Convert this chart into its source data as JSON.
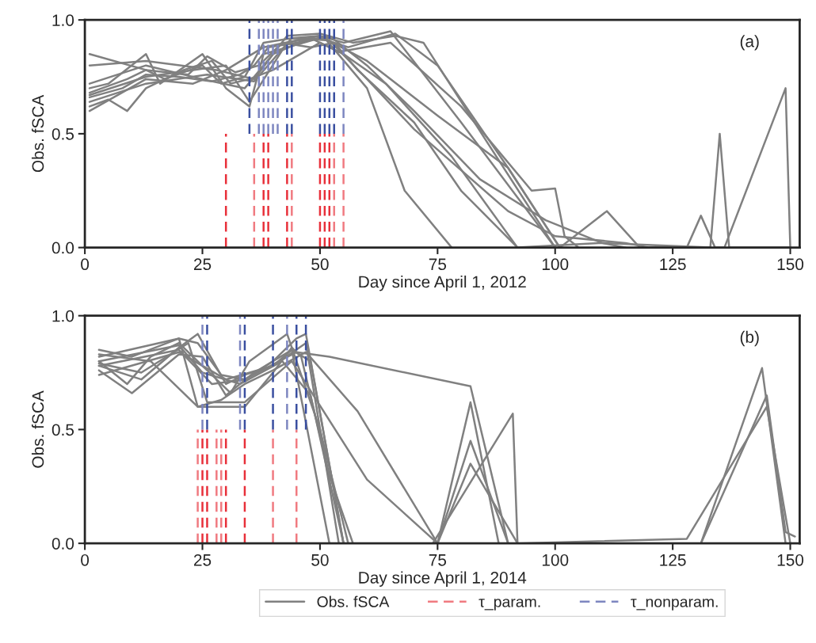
{
  "chart_data": [
    {
      "type": "line",
      "xlabel": "Day since April 1, 2012",
      "ylabel": "Obs. fSCA",
      "annotations": [
        "(a)"
      ],
      "xlim": [
        0,
        152
      ],
      "xticks": [
        0,
        25,
        50,
        75,
        100,
        125,
        150
      ],
      "ylim": [
        0,
        1
      ],
      "yticks": [
        {
          "value": 0,
          "label": "0.0"
        },
        {
          "value": 0.5,
          "label": "0.5"
        },
        {
          "value": 1,
          "label": "1.0"
        }
      ],
      "grid": false,
      "legend": false,
      "series": [
        {
          "color": "#808080",
          "x": [
            1,
            13,
            17,
            25,
            29,
            34,
            38,
            44,
            50,
            55,
            65,
            80,
            100
          ],
          "values": [
            0.85,
            0.78,
            0.74,
            0.8,
            0.72,
            0.75,
            0.9,
            0.92,
            0.93,
            0.9,
            0.95,
            0.55,
            0.0
          ]
        },
        {
          "type": "line",
          "color": "#808080",
          "x": [
            1,
            5,
            13,
            16,
            25,
            30,
            35,
            38,
            50,
            56,
            66,
            75,
            90,
            101
          ],
          "values": [
            0.7,
            0.72,
            0.85,
            0.72,
            0.85,
            0.7,
            0.62,
            0.85,
            0.92,
            0.88,
            0.94,
            0.8,
            0.35,
            0.0
          ]
        },
        {
          "type": "line",
          "color": "#808080",
          "x": [
            1,
            5,
            9,
            13,
            21,
            27,
            31,
            35,
            40,
            50,
            55,
            64,
            78,
            92
          ],
          "values": [
            0.62,
            0.65,
            0.6,
            0.7,
            0.78,
            0.82,
            0.72,
            0.74,
            0.78,
            0.9,
            0.85,
            0.72,
            0.4,
            0.0
          ]
        },
        {
          "type": "line",
          "color": "#808080",
          "x": [
            1,
            8,
            13,
            20,
            27,
            33,
            36,
            39,
            45,
            52,
            60,
            70,
            84,
            98,
            110,
            115
          ],
          "values": [
            0.66,
            0.7,
            0.76,
            0.75,
            0.73,
            0.76,
            0.8,
            0.88,
            0.9,
            0.93,
            0.8,
            0.6,
            0.3,
            0.12,
            0.02,
            0.0
          ]
        },
        {
          "type": "line",
          "color": "#808080",
          "x": [
            1,
            9,
            13,
            22,
            26,
            32,
            37,
            42,
            48,
            53,
            58,
            70,
            80,
            92,
            110,
            133,
            135,
            137,
            150
          ],
          "values": [
            0.68,
            0.74,
            0.78,
            0.76,
            0.84,
            0.77,
            0.8,
            0.9,
            0.88,
            0.9,
            0.78,
            0.55,
            0.25,
            0.0,
            0.02,
            0.0,
            0.5,
            0.0,
            0.0
          ]
        },
        {
          "type": "line",
          "color": "#808080",
          "x": [
            1,
            13,
            25,
            34,
            40,
            48,
            54,
            65,
            80,
            95,
            100,
            102,
            105
          ],
          "values": [
            0.72,
            0.8,
            0.74,
            0.7,
            0.85,
            0.92,
            0.86,
            0.9,
            0.62,
            0.25,
            0.26,
            0.05,
            0.0
          ]
        },
        {
          "type": "line",
          "color": "#808080",
          "x": [
            1,
            13,
            26,
            36,
            44,
            52,
            60,
            70,
            90,
            100,
            115,
            120,
            128,
            131,
            134,
            136,
            149,
            150
          ],
          "values": [
            0.64,
            0.72,
            0.76,
            0.73,
            0.92,
            0.91,
            0.74,
            0.52,
            0.16,
            0.05,
            0.02,
            0.0,
            0.0,
            0.14,
            0.0,
            0.0,
            0.7,
            0.0
          ]
        },
        {
          "type": "line",
          "color": "#808080",
          "x": [
            1,
            13,
            28,
            36,
            43,
            50,
            57,
            66,
            72,
            85,
            100
          ],
          "values": [
            0.8,
            0.82,
            0.78,
            0.74,
            0.93,
            0.94,
            0.9,
            0.93,
            0.9,
            0.48,
            0.0
          ]
        },
        {
          "type": "line",
          "color": "#808080",
          "x": [
            1,
            13,
            23,
            30,
            38,
            45,
            51,
            60,
            68,
            78
          ],
          "values": [
            0.6,
            0.74,
            0.72,
            0.78,
            0.88,
            0.91,
            0.92,
            0.7,
            0.25,
            0.0
          ]
        },
        {
          "type": "line",
          "color": "#808080",
          "x": [
            1,
            13,
            30,
            35,
            43,
            50,
            60,
            75,
            90,
            101,
            111,
            118
          ],
          "values": [
            0.67,
            0.75,
            0.8,
            0.64,
            0.9,
            0.93,
            0.82,
            0.58,
            0.35,
            0.0,
            0.16,
            0.0
          ]
        },
        {
          "color": "#e8303a",
          "line_style": "dashed",
          "x": [
            30,
            30
          ],
          "values": [
            0,
            0.5
          ]
        },
        {
          "type": "line",
          "color": "#f07a80",
          "line_style": "dashed",
          "x": [
            36,
            36
          ],
          "values": [
            0,
            0.5
          ]
        },
        {
          "type": "line",
          "color": "#e8303a",
          "line_style": "dashed",
          "x": [
            38,
            38
          ],
          "values": [
            0,
            0.5
          ]
        },
        {
          "type": "line",
          "color": "#e8303a",
          "line_style": "dashed",
          "x": [
            39,
            39
          ],
          "values": [
            0,
            0.5
          ]
        },
        {
          "type": "line",
          "color": "#e8303a",
          "line_style": "dashed",
          "x": [
            43,
            43
          ],
          "values": [
            0,
            0.5
          ]
        },
        {
          "type": "line",
          "color": "#f07a80",
          "line_style": "dashed",
          "x": [
            44,
            44
          ],
          "values": [
            0,
            0.5
          ]
        },
        {
          "type": "line",
          "color": "#e8303a",
          "line_style": "dashed",
          "x": [
            50,
            50
          ],
          "values": [
            0,
            0.5
          ]
        },
        {
          "type": "line",
          "color": "#e8303a",
          "line_style": "dashed",
          "x": [
            51,
            51
          ],
          "values": [
            0,
            0.5
          ]
        },
        {
          "type": "line",
          "color": "#e8303a",
          "line_style": "dashed",
          "x": [
            52,
            52
          ],
          "values": [
            0,
            0.5
          ]
        },
        {
          "type": "line",
          "color": "#f07a80",
          "line_style": "dashed",
          "x": [
            53,
            53
          ],
          "values": [
            0,
            0.5
          ]
        },
        {
          "type": "line",
          "color": "#f07a80",
          "line_style": "dashed",
          "x": [
            55,
            55
          ],
          "values": [
            0,
            0.5
          ]
        },
        {
          "color": "#3a4fa0",
          "line_style": "dashed",
          "x": [
            35,
            35
          ],
          "values": [
            0.5,
            1
          ]
        },
        {
          "type": "line",
          "color": "#7d86c0",
          "line_style": "dashed",
          "x": [
            37,
            37
          ],
          "values": [
            0.5,
            1
          ]
        },
        {
          "type": "line",
          "color": "#7d86c0",
          "line_style": "dashed",
          "x": [
            38,
            38
          ],
          "values": [
            0.5,
            1
          ]
        },
        {
          "type": "line",
          "color": "#7d86c0",
          "line_style": "dashed",
          "x": [
            39,
            39
          ],
          "values": [
            0.5,
            1
          ]
        },
        {
          "type": "line",
          "color": "#7d86c0",
          "line_style": "dashed",
          "x": [
            40,
            40
          ],
          "values": [
            0.5,
            1
          ]
        },
        {
          "type": "line",
          "color": "#7d86c0",
          "line_style": "dashed",
          "x": [
            41,
            41
          ],
          "values": [
            0.5,
            1
          ]
        },
        {
          "type": "line",
          "color": "#3a4fa0",
          "line_style": "dashed",
          "x": [
            43,
            43
          ],
          "values": [
            0.5,
            1
          ]
        },
        {
          "type": "line",
          "color": "#3a4fa0",
          "line_style": "dashed",
          "x": [
            44,
            44
          ],
          "values": [
            0.5,
            1
          ]
        },
        {
          "type": "line",
          "color": "#3a4fa0",
          "line_style": "dashed",
          "x": [
            50,
            50
          ],
          "values": [
            0.5,
            1
          ]
        },
        {
          "type": "line",
          "color": "#3a4fa0",
          "line_style": "dashed",
          "x": [
            51,
            51
          ],
          "values": [
            0.5,
            1
          ]
        },
        {
          "type": "line",
          "color": "#3a4fa0",
          "line_style": "dashed",
          "x": [
            52,
            52
          ],
          "values": [
            0.5,
            1
          ]
        },
        {
          "type": "line",
          "color": "#3a4fa0",
          "line_style": "dashed",
          "x": [
            53,
            53
          ],
          "values": [
            0.5,
            1
          ]
        },
        {
          "type": "line",
          "color": "#7d86c0",
          "line_style": "dashed",
          "x": [
            55,
            55
          ],
          "values": [
            0.5,
            1
          ]
        }
      ]
    },
    {
      "type": "line",
      "xlabel": "Day since April 1, 2014",
      "ylabel": "Obs. fSCA",
      "annotations": [
        "(b)"
      ],
      "xlim": [
        0,
        152
      ],
      "xticks": [
        0,
        25,
        50,
        75,
        100,
        125,
        150
      ],
      "ylim": [
        0,
        1
      ],
      "yticks": [
        {
          "value": 0,
          "label": "0.0"
        },
        {
          "value": 0.5,
          "label": "0.5"
        },
        {
          "value": 1,
          "label": "1.0"
        }
      ],
      "grid": false,
      "legend": "bottom",
      "series": [
        {
          "type": "line",
          "name": "Obs. fSCA",
          "color": "#808080",
          "x": [
            3,
            10,
            20,
            24,
            29,
            34,
            40,
            45,
            47,
            55
          ],
          "values": [
            0.85,
            0.82,
            0.9,
            0.88,
            0.74,
            0.72,
            0.8,
            0.9,
            0.92,
            0.0
          ]
        },
        {
          "type": "line",
          "color": "#808080",
          "x": [
            3,
            12,
            20,
            24,
            30,
            34,
            40,
            44,
            52
          ],
          "values": [
            0.78,
            0.72,
            0.86,
            0.92,
            0.7,
            0.74,
            0.78,
            0.85,
            0.0
          ]
        },
        {
          "type": "line",
          "color": "#808080",
          "x": [
            3,
            9,
            14,
            20,
            26,
            31,
            35,
            43,
            50,
            56
          ],
          "values": [
            0.8,
            0.7,
            0.82,
            0.88,
            0.76,
            0.66,
            0.8,
            0.92,
            0.5,
            0.0
          ]
        },
        {
          "type": "line",
          "color": "#808080",
          "x": [
            3,
            10,
            20,
            25,
            30,
            36,
            44,
            48,
            55
          ],
          "values": [
            0.76,
            0.66,
            0.83,
            0.82,
            0.65,
            0.75,
            0.85,
            0.8,
            0.0
          ]
        },
        {
          "type": "line",
          "color": "#808080",
          "x": [
            3,
            20,
            24,
            34,
            40,
            44,
            46,
            52,
            57
          ],
          "values": [
            0.82,
            0.9,
            0.6,
            0.6,
            0.75,
            0.86,
            0.82,
            0.3,
            0.0
          ]
        },
        {
          "type": "line",
          "color": "#808080",
          "x": [
            3,
            20,
            27,
            34,
            45,
            52,
            82,
            90
          ],
          "values": [
            0.78,
            0.85,
            0.7,
            0.72,
            0.84,
            0.82,
            0.69,
            0.0
          ]
        },
        {
          "type": "line",
          "color": "#808080",
          "x": [
            3,
            20,
            25,
            33,
            42,
            48,
            55,
            75,
            82,
            88,
            131,
            144,
            149
          ],
          "values": [
            0.8,
            0.87,
            0.75,
            0.7,
            0.8,
            0.65,
            0.0,
            0.0,
            0.62,
            0.0,
            0.0,
            0.77,
            0.0
          ]
        },
        {
          "type": "line",
          "color": "#808080",
          "x": [
            3,
            20,
            30,
            40,
            47,
            54,
            74,
            91,
            92,
            110
          ],
          "values": [
            0.74,
            0.84,
            0.72,
            0.78,
            0.88,
            0.0,
            0.0,
            0.57,
            0.0,
            0.0
          ]
        },
        {
          "type": "line",
          "color": "#808080",
          "x": [
            3,
            12,
            22,
            26,
            34,
            44,
            60,
            75,
            82,
            90,
            131,
            145,
            149,
            151
          ],
          "values": [
            0.79,
            0.75,
            0.88,
            0.62,
            0.62,
            0.8,
            0.28,
            0.0,
            0.45,
            0.0,
            0.0,
            0.65,
            0.05,
            0.03
          ]
        },
        {
          "type": "line",
          "color": "#808080",
          "x": [
            3,
            14,
            24,
            29,
            34,
            40,
            47,
            58,
            75,
            82,
            92,
            128,
            145,
            150
          ],
          "values": [
            0.83,
            0.8,
            0.6,
            0.63,
            0.7,
            0.76,
            0.84,
            0.58,
            0.0,
            0.35,
            0.0,
            0.02,
            0.6,
            0.0
          ]
        },
        {
          "type": "line",
          "name": "τ_param.",
          "color": "#f07a80",
          "line_style": "dashed",
          "x": [
            24,
            24
          ],
          "values": [
            0,
            0.5
          ]
        },
        {
          "type": "line",
          "color": "#e8303a",
          "line_style": "dashed",
          "x": [
            25,
            25
          ],
          "values": [
            0,
            0.5
          ]
        },
        {
          "type": "line",
          "color": "#e8303a",
          "line_style": "dashed",
          "x": [
            26,
            26
          ],
          "values": [
            0,
            0.5
          ]
        },
        {
          "type": "line",
          "color": "#f07a80",
          "line_style": "dashed",
          "x": [
            28,
            28
          ],
          "values": [
            0,
            0.5
          ]
        },
        {
          "type": "line",
          "color": "#f07a80",
          "line_style": "dashed",
          "x": [
            29,
            29
          ],
          "values": [
            0,
            0.5
          ]
        },
        {
          "type": "line",
          "color": "#e8303a",
          "line_style": "dashed",
          "x": [
            30,
            30
          ],
          "values": [
            0,
            0.5
          ]
        },
        {
          "type": "line",
          "color": "#e8303a",
          "line_style": "dashed",
          "x": [
            34,
            34
          ],
          "values": [
            0,
            0.5
          ]
        },
        {
          "type": "line",
          "color": "#f07a80",
          "line_style": "dashed",
          "x": [
            40,
            40
          ],
          "values": [
            0,
            0.5
          ]
        },
        {
          "type": "line",
          "color": "#f07a80",
          "line_style": "dashed",
          "x": [
            45,
            45
          ],
          "values": [
            0,
            0.5
          ]
        },
        {
          "type": "line",
          "name": "τ_nonparam.",
          "color": "#7d86c0",
          "line_style": "dashed",
          "x": [
            25,
            25
          ],
          "values": [
            0.5,
            1
          ]
        },
        {
          "type": "line",
          "color": "#3a4fa0",
          "line_style": "dashed",
          "x": [
            26,
            26
          ],
          "values": [
            0.5,
            1
          ]
        },
        {
          "type": "line",
          "color": "#7d86c0",
          "line_style": "dashed",
          "x": [
            33,
            33
          ],
          "values": [
            0.5,
            1
          ]
        },
        {
          "type": "line",
          "color": "#3a4fa0",
          "line_style": "dashed",
          "x": [
            34,
            34
          ],
          "values": [
            0.5,
            1
          ]
        },
        {
          "type": "line",
          "color": "#3a4fa0",
          "line_style": "dashed",
          "x": [
            40,
            40
          ],
          "values": [
            0.5,
            1
          ]
        },
        {
          "type": "line",
          "color": "#7d86c0",
          "line_style": "dashed",
          "x": [
            43,
            43
          ],
          "values": [
            0.5,
            1
          ]
        },
        {
          "type": "line",
          "color": "#3a4fa0",
          "line_style": "dashed",
          "x": [
            45,
            45
          ],
          "values": [
            0.5,
            1
          ]
        },
        {
          "type": "line",
          "color": "#3a4fa0",
          "line_style": "dashed",
          "x": [
            47,
            47
          ],
          "values": [
            0.5,
            1
          ]
        }
      ]
    }
  ]
}
